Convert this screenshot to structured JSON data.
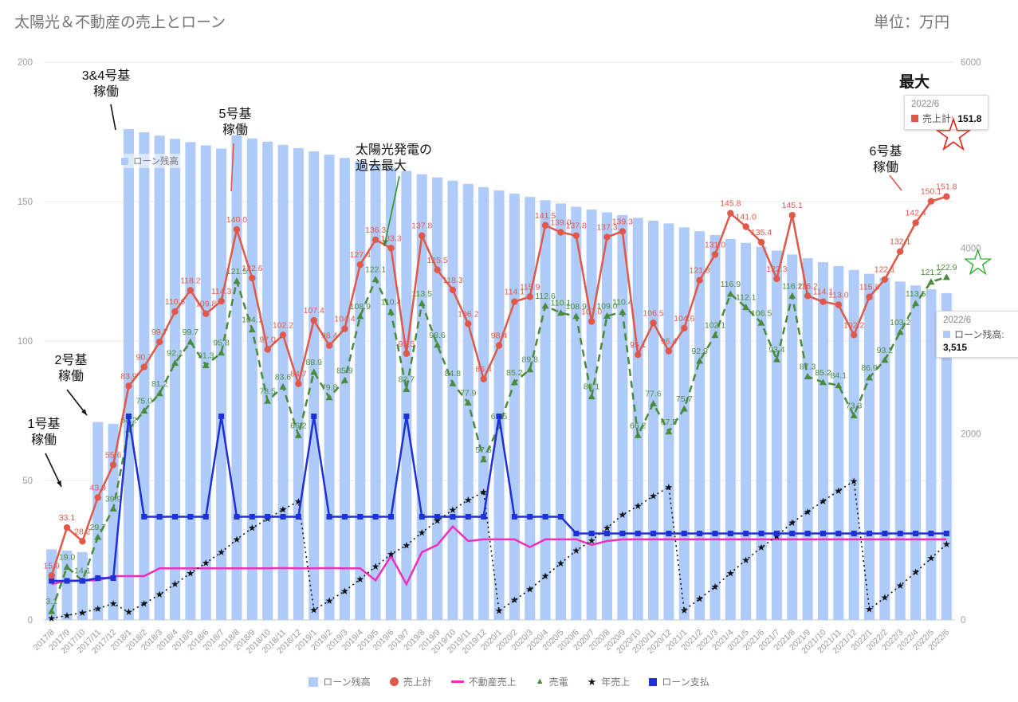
{
  "header": {
    "title": "太陽光＆不動産の売上とローン",
    "unit_label": "単位：万円"
  },
  "axes": {
    "left_ticks": [
      "0",
      "50",
      "100",
      "150",
      "200"
    ],
    "right_ticks": [
      "0",
      "2000",
      "4000",
      "6000"
    ]
  },
  "icons": {
    "triangle": "▲",
    "star": "★",
    "star_outline": "☆"
  },
  "colors": {
    "bars": "#aecbfa",
    "sales_red": "#e0584a",
    "real_estate_magenta": "#f22db8",
    "solar_green": "#4a8b3b",
    "annual_black": "#111111",
    "payment_blue": "#2030d8",
    "star_red": "#e5261b",
    "star_green": "#1ea91e"
  },
  "inplot_legend": {
    "label": "ローン残高"
  },
  "annotations": {
    "unit34": "3&4号基\n稼働",
    "unit5": "5号基\n稼働",
    "solar_max": "太陽光発電の\n過去最大",
    "unit6": "6号基\n稼働",
    "unit2": "2号基\n稼働",
    "unit1": "1号基\n稼働",
    "max": "最大"
  },
  "tooltips": {
    "sales_max": {
      "date": "2022/6",
      "series": "売上計:",
      "value": "151.8"
    },
    "loan": {
      "date": "2022/6",
      "series": "ローン残高:",
      "value": "3,515"
    }
  },
  "legend": [
    {
      "label": "ローン残高"
    },
    {
      "label": "売上計"
    },
    {
      "label": "不動産売上"
    },
    {
      "label": "売電"
    },
    {
      "label": "年売上"
    },
    {
      "label": "ローン支払"
    }
  ],
  "chart_data": {
    "type": "combo",
    "title": "太陽光＆不動産の売上とローン",
    "left_axis": {
      "min": 0,
      "max": 200
    },
    "right_axis": {
      "min": 0,
      "max": 6000
    },
    "x": [
      "2017/8",
      "2017/9",
      "2017/10",
      "2017/11",
      "2017/12",
      "2018/1",
      "2018/2",
      "2018/3",
      "2018/4",
      "2018/5",
      "2018/6",
      "2018/7",
      "2018/8",
      "2018/9",
      "2018/10",
      "2018/11",
      "2018/12",
      "2019/1",
      "2019/2",
      "2019/3",
      "2019/4",
      "2019/5",
      "2019/6",
      "2019/7",
      "2019/8",
      "2019/9",
      "2019/10",
      "2019/11",
      "2019/12",
      "2020/1",
      "2020/2",
      "2020/3",
      "2020/4",
      "2020/5",
      "2020/6",
      "2020/7",
      "2020/8",
      "2020/9",
      "2020/10",
      "2020/11",
      "2020/12",
      "2021/1",
      "2021/2",
      "2021/3",
      "2021/4",
      "2021/5",
      "2021/6",
      "2021/7",
      "2021/8",
      "2021/9",
      "2021/10",
      "2021/11",
      "2021/12",
      "2022/1",
      "2022/2",
      "2022/3",
      "2022/4",
      "2022/5",
      "2022/6"
    ],
    "series": [
      {
        "name": "ローン残高",
        "type": "bar",
        "axis": "right",
        "color": "#aecbfa",
        "values": [
          760,
          745,
          730,
          2130,
          2110,
          5280,
          5245,
          5210,
          5175,
          5140,
          5105,
          5070,
          5215,
          5180,
          5145,
          5110,
          5075,
          5040,
          5005,
          4970,
          4935,
          4900,
          4865,
          4830,
          4795,
          4760,
          4725,
          4690,
          4655,
          4620,
          4585,
          4550,
          4515,
          4480,
          4445,
          4415,
          4385,
          4355,
          4325,
          4295,
          4265,
          4223,
          4181,
          4140,
          4098,
          4056,
          4015,
          3973,
          3931,
          3890,
          3848,
          3806,
          3765,
          3723,
          3681,
          3640,
          3598,
          3556,
          3515
        ]
      },
      {
        "name": "売上計",
        "type": "line",
        "marker": "circle",
        "axis": "left",
        "color": "#e0584a",
        "data_labels": true,
        "values": [
          15.9,
          33.1,
          28.2,
          43.9,
          55.6,
          83.9,
          90.7,
          99.7,
          110.6,
          118.2,
          109.8,
          114.3,
          140.0,
          122.6,
          97.0,
          102.2,
          84.7,
          107.4,
          98.4,
          104.4,
          127.4,
          136.3,
          133.3,
          95.5,
          137.8,
          125.5,
          118.3,
          106.2,
          86.4,
          98.4,
          114.1,
          115.9,
          141.5,
          139.0,
          137.8,
          107.0,
          137.3,
          139.3,
          95.1,
          106.5,
          96.4,
          104.6,
          121.8,
          131.0,
          145.8,
          141.0,
          135.4,
          122.3,
          145.1,
          116.2,
          114.1,
          113.0,
          102.2,
          115.8,
          122.1,
          132.1,
          142.4,
          150.1,
          151.8
        ]
      },
      {
        "name": "不動産売上",
        "type": "line",
        "axis": "left",
        "color": "#f22db8",
        "data_labels": false,
        "values": [
          12.8,
          14.1,
          14.1,
          14.2,
          15.7,
          15.7,
          15.7,
          18.5,
          18.5,
          18.5,
          18.5,
          18.5,
          18.5,
          18.5,
          18.5,
          18.6,
          18.5,
          18.5,
          18.6,
          18.5,
          18.5,
          14.2,
          22.9,
          12.8,
          24.3,
          26.9,
          33.5,
          28.3,
          28.9,
          28.9,
          28.9,
          26.1,
          28.9,
          28.9,
          28.9,
          26.9,
          28.3,
          28.9,
          28.9,
          28.9,
          28.9,
          28.9,
          28.9,
          28.9,
          28.9,
          28.9,
          28.9,
          28.9,
          28.9,
          28.9,
          28.9,
          28.9,
          28.9,
          28.9,
          28.9,
          28.9,
          28.9,
          28.9,
          28.9
        ]
      },
      {
        "name": "売電",
        "type": "line",
        "marker": "triangle",
        "style": "dashed",
        "axis": "left",
        "color": "#4a8b3b",
        "data_labels": true,
        "values": [
          3.1,
          19.0,
          14.1,
          29.7,
          39.9,
          68.2,
          75.0,
          81.2,
          92.1,
          99.7,
          91.3,
          95.8,
          121.5,
          104.1,
          78.5,
          83.6,
          66.2,
          88.9,
          79.8,
          85.9,
          108.9,
          122.1,
          110.4,
          82.7,
          113.5,
          98.6,
          84.8,
          77.9,
          57.5,
          69.5,
          85.2,
          89.8,
          112.6,
          110.1,
          108.9,
          80.1,
          109.0,
          110.4,
          66.2,
          77.6,
          67.5,
          75.7,
          92.9,
          102.1,
          116.9,
          112.1,
          106.5,
          93.4,
          116.2,
          87.3,
          85.2,
          84.1,
          73.3,
          86.9,
          93.2,
          103.2,
          113.5,
          121.2,
          122.9
        ]
      },
      {
        "name": "年売上",
        "type": "line",
        "marker": "star",
        "style": "dotted",
        "axis": "right",
        "color": "#111111",
        "data_labels": false,
        "values": [
          15.9,
          49.0,
          77.2,
          121.1,
          176.7,
          83.9,
          174.6,
          274.3,
          384.9,
          503.1,
          612.9,
          727.2,
          867.2,
          989.8,
          1086.8,
          1189.0,
          1273.7,
          107.4,
          205.8,
          310.2,
          437.6,
          573.9,
          707.2,
          802.7,
          940.5,
          1066.0,
          1184.3,
          1290.5,
          1376.9,
          98.4,
          212.5,
          328.4,
          469.9,
          608.9,
          746.7,
          853.7,
          991.0,
          1130.3,
          1225.4,
          1331.9,
          1428.3,
          104.6,
          226.4,
          357.4,
          503.2,
          644.2,
          779.6,
          901.9,
          1047.0,
          1163.2,
          1277.3,
          1390.3,
          1492.5,
          115.8,
          237.9,
          370.0,
          512.4,
          662.5,
          814.3
        ]
      },
      {
        "name": "ローン支払",
        "type": "line",
        "marker": "square",
        "axis": "left",
        "color": "#2030d8",
        "data_labels": false,
        "values": [
          14,
          14,
          14,
          15,
          15,
          73,
          37,
          37,
          37,
          37,
          37,
          73,
          37,
          37,
          37,
          37,
          37,
          73,
          37,
          37,
          37,
          37,
          37,
          73,
          37,
          37,
          37,
          37,
          37,
          73,
          37,
          37,
          37,
          37,
          31,
          31,
          31,
          31,
          31,
          31,
          31,
          31,
          31,
          31,
          31,
          31,
          31,
          31,
          31,
          31,
          31,
          31,
          31,
          31,
          31,
          31,
          31,
          31,
          31
        ]
      }
    ]
  }
}
